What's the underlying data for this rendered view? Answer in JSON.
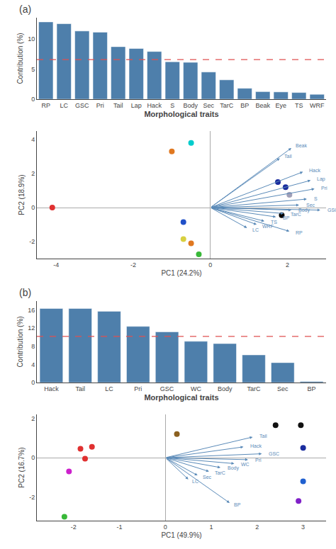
{
  "chart_data": [
    {
      "type": "bar",
      "title": "(a)",
      "categories": [
        "RP",
        "LC",
        "GSC",
        "Pri",
        "Tail",
        "Lap",
        "Hack",
        "S",
        "Body",
        "Sec",
        "TarC",
        "BP",
        "Beak",
        "Eye",
        "TS",
        "WRF"
      ],
      "values": [
        12.8,
        12.5,
        11.3,
        11.1,
        8.7,
        8.4,
        7.9,
        6.2,
        6.1,
        4.5,
        3.2,
        1.8,
        1.25,
        1.2,
        1.1,
        0.8
      ],
      "color": "#4e7fab",
      "xlabel": "Morphological traits",
      "ylabel": "Contribution (%)",
      "ylim": [
        0,
        13.5
      ],
      "yticks": [
        0,
        5,
        10
      ],
      "grid": false,
      "reference_line": {
        "value": 6.55,
        "color": "#e05050",
        "line_style": "dashed"
      }
    },
    {
      "type": "scatter",
      "xlabel": "PC1 (24.2%)",
      "ylabel": "PC2 (18.9%)",
      "xlim": [
        -4.5,
        3.0
      ],
      "ylim": [
        -3.0,
        4.5
      ],
      "xticks": [
        -4,
        -2,
        0,
        2
      ],
      "yticks": [
        -2,
        0,
        2,
        4
      ],
      "grid": false,
      "x": [
        -4.1,
        -0.5,
        -1.0,
        -0.7,
        -0.7,
        -0.5,
        -0.3,
        1.75,
        1.95,
        2.05,
        1.85
      ],
      "y": [
        0.0,
        3.8,
        3.3,
        -0.85,
        -1.85,
        -2.1,
        -2.75,
        1.5,
        1.2,
        0.75,
        -0.45
      ],
      "colors": [
        "#e03030",
        "#00cccc",
        "#e07820",
        "#2050c8",
        "#d8d040",
        "#e07820",
        "#38b838",
        "#1a2c9e",
        "#1a2c9e",
        "#a0a0b8",
        "#000000"
      ],
      "arrow_color": "#5a8ab8",
      "arrows": [
        {
          "x0": 0,
          "y0": 0,
          "x1": 2.1,
          "y1": 3.5,
          "label": "Beak"
        },
        {
          "x0": 0,
          "y0": 0,
          "x1": 1.8,
          "y1": 2.9,
          "label": "Tail"
        },
        {
          "x0": 0,
          "y0": 0,
          "x1": 2.4,
          "y1": 2.1,
          "label": "Hack"
        },
        {
          "x0": 0,
          "y0": 0,
          "x1": 2.6,
          "y1": 1.6,
          "label": "Lap"
        },
        {
          "x0": 0,
          "y0": 0,
          "x1": 2.7,
          "y1": 1.1,
          "label": "Pri"
        },
        {
          "x0": 0,
          "y0": 0,
          "x1": 2.5,
          "y1": 0.5,
          "label": "S"
        },
        {
          "x0": 0,
          "y0": 0,
          "x1": 2.3,
          "y1": 0.15,
          "label": "Sec"
        },
        {
          "x0": 0,
          "y0": 0,
          "x1": 2.1,
          "y1": -0.15,
          "label": "Body"
        },
        {
          "x0": 0,
          "y0": 0,
          "x1": 1.9,
          "y1": -0.35,
          "label": "TarC"
        },
        {
          "x0": 0,
          "y0": 0,
          "x1": 1.7,
          "y1": -0.55,
          "label": "BP"
        },
        {
          "x0": 0,
          "y0": 0,
          "x1": 1.4,
          "y1": -0.8,
          "label": "TS"
        },
        {
          "x0": 0,
          "y0": 0,
          "x1": 1.2,
          "y1": -1.0,
          "label": "WRF"
        },
        {
          "x0": 0,
          "y0": 0,
          "x1": 0.95,
          "y1": -1.2,
          "label": "LC"
        },
        {
          "x0": 0,
          "y0": 0,
          "x1": 2.85,
          "y1": -0.15,
          "label": "GSC"
        },
        {
          "x0": 0,
          "y0": 0,
          "x1": 2.05,
          "y1": -1.4,
          "label": "RP"
        }
      ]
    },
    {
      "type": "bar",
      "title": "(b)",
      "categories": [
        "Hack",
        "Tail",
        "LC",
        "Pri",
        "GSC",
        "WC",
        "Body",
        "TarC",
        "Sec",
        "BP"
      ],
      "values": [
        16.35,
        16.35,
        15.75,
        12.4,
        11.2,
        9.1,
        8.6,
        6.1,
        4.4,
        0.25
      ],
      "color": "#4e7fab",
      "xlabel": "Morphological traits",
      "ylabel": "Contribution (%)",
      "ylim": [
        0,
        18
      ],
      "yticks": [
        0,
        4,
        8,
        12,
        16
      ],
      "grid": false,
      "reference_line": {
        "value": 10.2,
        "color": "#e05050",
        "line_style": "dashed"
      }
    },
    {
      "type": "scatter",
      "xlabel": "PC1 (49.9%)",
      "ylabel": "PC2 (16.7%)",
      "xlim": [
        -2.8,
        3.5
      ],
      "ylim": [
        -3.2,
        2.2
      ],
      "xticks": [
        -2,
        -1,
        0,
        1,
        2,
        3
      ],
      "yticks": [
        -2,
        0,
        2
      ],
      "grid": false,
      "x": [
        -1.85,
        -1.6,
        -1.75,
        -2.1,
        -2.2,
        0.25,
        2.4,
        2.95,
        3.0,
        2.9,
        3.0
      ],
      "y": [
        0.45,
        0.55,
        -0.05,
        -0.7,
        -3.0,
        1.2,
        1.65,
        1.65,
        0.5,
        -2.2,
        -1.2
      ],
      "colors": [
        "#e03030",
        "#e03030",
        "#e03030",
        "#cc20cc",
        "#38b838",
        "#8b6020",
        "#111111",
        "#111111",
        "#1a2c9e",
        "#8020c8",
        "#2060d0"
      ],
      "arrow_color": "#5a8ab8",
      "arrows": [
        {
          "x0": 0,
          "y0": 0,
          "x1": 1.9,
          "y1": 1.05,
          "label": "Tail"
        },
        {
          "x0": 0,
          "y0": 0,
          "x1": 1.7,
          "y1": 0.55,
          "label": "Hack"
        },
        {
          "x0": 0,
          "y0": 0,
          "x1": 2.1,
          "y1": 0.2,
          "label": "GSC"
        },
        {
          "x0": 0,
          "y0": 0,
          "x1": 1.8,
          "y1": -0.1,
          "label": "Pri"
        },
        {
          "x0": 0,
          "y0": 0,
          "x1": 1.5,
          "y1": -0.3,
          "label": "WC"
        },
        {
          "x0": 0,
          "y0": 0,
          "x1": 1.2,
          "y1": -0.5,
          "label": "Body"
        },
        {
          "x0": 0,
          "y0": 0,
          "x1": 0.95,
          "y1": -0.7,
          "label": "TarC"
        },
        {
          "x0": 0,
          "y0": 0,
          "x1": 0.7,
          "y1": -0.9,
          "label": "Sec"
        },
        {
          "x0": 0,
          "y0": 0,
          "x1": 0.5,
          "y1": -1.1,
          "label": "LC"
        },
        {
          "x0": 0,
          "y0": 0,
          "x1": 1.4,
          "y1": -2.3,
          "label": "BP"
        }
      ]
    }
  ]
}
